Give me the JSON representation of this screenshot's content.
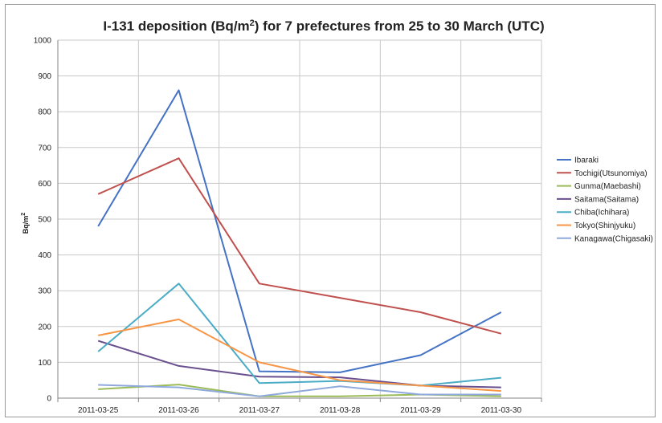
{
  "chart_data": {
    "type": "line",
    "title": {
      "prefix": "I-131 deposition (Bq/m",
      "sup": "2",
      "suffix": ") for 7 prefectures from 25 to 30 March (UTC)"
    },
    "ylabel": {
      "base": "Bq/m",
      "sup": "2"
    },
    "xlabel": "",
    "categories": [
      "2011-03-25",
      "2011-03-26",
      "2011-03-27",
      "2011-03-28",
      "2011-03-29",
      "2011-03-30"
    ],
    "ylim": [
      0,
      1000
    ],
    "yticks": [
      "0",
      "100",
      "200",
      "300",
      "400",
      "500",
      "600",
      "700",
      "800",
      "900",
      "1000"
    ],
    "grid": true,
    "legend": "right",
    "series": [
      {
        "name": "Ibaraki",
        "color": "#4472c4",
        "values": [
          480,
          860,
          75,
          72,
          120,
          240
        ]
      },
      {
        "name": "Tochigi(Utsunomiya)",
        "color": "#c0504d",
        "values": [
          570,
          670,
          320,
          280,
          240,
          180
        ]
      },
      {
        "name": "Gunma(Maebashi)",
        "color": "#9bbb59",
        "values": [
          25,
          38,
          5,
          5,
          10,
          5
        ]
      },
      {
        "name": "Saitama(Saitama)",
        "color": "#6a4f8e",
        "values": [
          160,
          90,
          60,
          58,
          35,
          30
        ]
      },
      {
        "name": "Chiba(Ichihara)",
        "color": "#4bacc6",
        "values": [
          130,
          320,
          42,
          48,
          35,
          57
        ]
      },
      {
        "name": "Tokyo(Shinjyuku)",
        "color": "#f79646",
        "values": [
          175,
          220,
          100,
          50,
          35,
          20
        ]
      },
      {
        "name": "Kanagawa(Chigasaki)",
        "color": "#8fa9dc",
        "values": [
          37,
          30,
          5,
          33,
          10,
          10
        ]
      }
    ]
  }
}
